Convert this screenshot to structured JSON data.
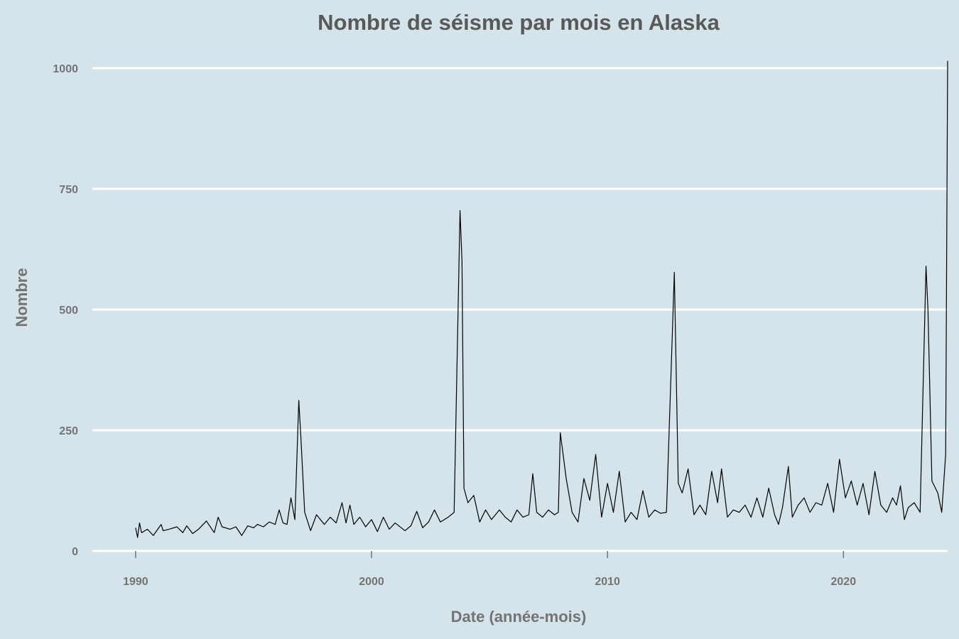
{
  "chart_data": {
    "type": "line",
    "title": "Nombre de séisme par mois en Alaska",
    "xlabel": "Date (année-mois)",
    "ylabel": "Nombre",
    "x_ticks": [
      "1990",
      "2000",
      "2010",
      "2020"
    ],
    "y_ticks": [
      "0",
      "250",
      "500",
      "750",
      "1000"
    ],
    "xlim": [
      "1988-03",
      "2024-06"
    ],
    "ylim": [
      0,
      1000
    ],
    "grid": "horizontal major lines only",
    "legend": "none",
    "colors": {
      "background": "#d5e4eb",
      "grid": "#ffffff",
      "line": "#000000",
      "title": "#595959",
      "axis_text": "#737373"
    },
    "series": [
      {
        "points": [
          [
            "1990-01",
            48
          ],
          [
            "1990-02",
            28
          ],
          [
            "1990-03",
            58
          ],
          [
            "1990-04",
            38
          ],
          [
            "1990-05",
            40
          ],
          [
            "1990-07",
            45
          ],
          [
            "1990-10",
            32
          ],
          [
            "1991-02",
            55
          ],
          [
            "1991-03",
            42
          ],
          [
            "1991-06",
            45
          ],
          [
            "1991-10",
            50
          ],
          [
            "1992-01",
            38
          ],
          [
            "1992-03",
            52
          ],
          [
            "1992-06",
            36
          ],
          [
            "1992-09",
            45
          ],
          [
            "1993-01",
            62
          ],
          [
            "1993-05",
            38
          ],
          [
            "1993-07",
            70
          ],
          [
            "1993-09",
            50
          ],
          [
            "1994-01",
            45
          ],
          [
            "1994-04",
            50
          ],
          [
            "1994-07",
            32
          ],
          [
            "1994-10",
            52
          ],
          [
            "1995-01",
            48
          ],
          [
            "1995-03",
            55
          ],
          [
            "1995-06",
            50
          ],
          [
            "1995-09",
            60
          ],
          [
            "1995-12",
            55
          ],
          [
            "1996-02",
            85
          ],
          [
            "1996-04",
            58
          ],
          [
            "1996-06",
            55
          ],
          [
            "1996-08",
            110
          ],
          [
            "1996-10",
            65
          ],
          [
            "1996-12",
            312
          ],
          [
            "1997-01",
            240
          ],
          [
            "1997-03",
            80
          ],
          [
            "1997-06",
            42
          ],
          [
            "1997-09",
            75
          ],
          [
            "1998-01",
            55
          ],
          [
            "1998-04",
            70
          ],
          [
            "1998-07",
            58
          ],
          [
            "1998-10",
            100
          ],
          [
            "1998-12",
            58
          ],
          [
            "1999-02",
            95
          ],
          [
            "1999-04",
            55
          ],
          [
            "1999-07",
            70
          ],
          [
            "1999-10",
            50
          ],
          [
            "2000-01",
            65
          ],
          [
            "2000-04",
            40
          ],
          [
            "2000-07",
            70
          ],
          [
            "2000-10",
            45
          ],
          [
            "2001-01",
            58
          ],
          [
            "2001-06",
            42
          ],
          [
            "2001-09",
            52
          ],
          [
            "2001-12",
            82
          ],
          [
            "2002-03",
            48
          ],
          [
            "2002-06",
            60
          ],
          [
            "2002-09",
            85
          ],
          [
            "2002-12",
            60
          ],
          [
            "2003-04",
            70
          ],
          [
            "2003-07",
            80
          ],
          [
            "2003-10",
            705
          ],
          [
            "2003-11",
            600
          ],
          [
            "2003-12",
            130
          ],
          [
            "2004-02",
            100
          ],
          [
            "2004-05",
            115
          ],
          [
            "2004-08",
            60
          ],
          [
            "2004-11",
            85
          ],
          [
            "2005-02",
            65
          ],
          [
            "2005-06",
            85
          ],
          [
            "2005-09",
            70
          ],
          [
            "2005-12",
            60
          ],
          [
            "2006-03",
            85
          ],
          [
            "2006-06",
            70
          ],
          [
            "2006-09",
            75
          ],
          [
            "2006-11",
            160
          ],
          [
            "2007-01",
            80
          ],
          [
            "2007-04",
            70
          ],
          [
            "2007-07",
            85
          ],
          [
            "2007-10",
            75
          ],
          [
            "2007-12",
            80
          ],
          [
            "2008-01",
            245
          ],
          [
            "2008-04",
            150
          ],
          [
            "2008-07",
            80
          ],
          [
            "2008-10",
            60
          ],
          [
            "2009-01",
            150
          ],
          [
            "2009-04",
            105
          ],
          [
            "2009-07",
            200
          ],
          [
            "2009-10",
            70
          ],
          [
            "2010-01",
            140
          ],
          [
            "2010-04",
            80
          ],
          [
            "2010-07",
            165
          ],
          [
            "2010-10",
            60
          ],
          [
            "2011-01",
            80
          ],
          [
            "2011-04",
            65
          ],
          [
            "2011-07",
            125
          ],
          [
            "2011-10",
            70
          ],
          [
            "2012-01",
            85
          ],
          [
            "2012-04",
            78
          ],
          [
            "2012-07",
            80
          ],
          [
            "2012-11",
            577
          ],
          [
            "2013-01",
            140
          ],
          [
            "2013-03",
            120
          ],
          [
            "2013-06",
            170
          ],
          [
            "2013-09",
            75
          ],
          [
            "2013-12",
            95
          ],
          [
            "2014-03",
            75
          ],
          [
            "2014-06",
            165
          ],
          [
            "2014-09",
            100
          ],
          [
            "2014-11",
            170
          ],
          [
            "2015-02",
            70
          ],
          [
            "2015-05",
            85
          ],
          [
            "2015-08",
            80
          ],
          [
            "2015-11",
            95
          ],
          [
            "2016-02",
            70
          ],
          [
            "2016-05",
            110
          ],
          [
            "2016-08",
            70
          ],
          [
            "2016-11",
            130
          ],
          [
            "2017-02",
            75
          ],
          [
            "2017-04",
            55
          ],
          [
            "2017-06",
            90
          ],
          [
            "2017-09",
            175
          ],
          [
            "2017-11",
            70
          ],
          [
            "2018-02",
            95
          ],
          [
            "2018-05",
            110
          ],
          [
            "2018-08",
            80
          ],
          [
            "2018-11",
            100
          ],
          [
            "2019-02",
            95
          ],
          [
            "2019-05",
            140
          ],
          [
            "2019-08",
            80
          ],
          [
            "2019-11",
            190
          ],
          [
            "2020-02",
            110
          ],
          [
            "2020-05",
            145
          ],
          [
            "2020-08",
            95
          ],
          [
            "2020-11",
            140
          ],
          [
            "2021-02",
            75
          ],
          [
            "2021-05",
            165
          ],
          [
            "2021-08",
            95
          ],
          [
            "2021-11",
            80
          ],
          [
            "2022-02",
            110
          ],
          [
            "2022-04",
            95
          ],
          [
            "2022-06",
            135
          ],
          [
            "2022-08",
            65
          ],
          [
            "2022-10",
            90
          ],
          [
            "2023-01",
            100
          ],
          [
            "2023-04",
            80
          ],
          [
            "2023-07",
            590
          ],
          [
            "2023-08",
            500
          ],
          [
            "2023-10",
            145
          ],
          [
            "2024-01",
            120
          ],
          [
            "2024-03",
            80
          ],
          [
            "2024-05",
            200
          ],
          [
            "2024-06",
            1015
          ]
        ]
      }
    ]
  }
}
